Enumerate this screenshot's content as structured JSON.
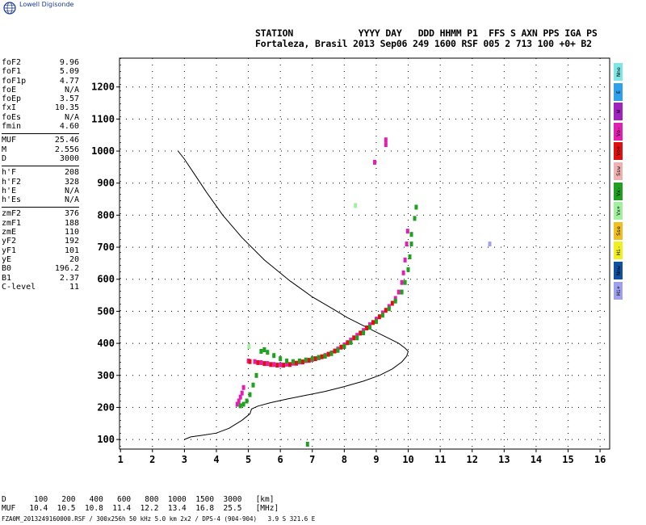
{
  "app": {
    "logo_text": "Lowell Digisonde"
  },
  "header": {
    "line1": "STATION            YYYY DAY   DDD HHMM P1  FFS S AXN PPS IGA PS",
    "line2": "Fortaleza, Brasil 2013 Sep06 249 1600 RSF 005 2 713 100 +0+ B2"
  },
  "params": {
    "group1": [
      {
        "label": "foF2",
        "value": "9.96"
      },
      {
        "label": "foF1",
        "value": "5.09"
      },
      {
        "label": "foF1p",
        "value": "4.77"
      },
      {
        "label": "foE",
        "value": "N/A"
      },
      {
        "label": "foEp",
        "value": "3.57"
      },
      {
        "label": "fxI",
        "value": "10.35"
      },
      {
        "label": "foEs",
        "value": "N/A"
      },
      {
        "label": "fmin",
        "value": "4.60"
      }
    ],
    "group2": [
      {
        "label": "MUF",
        "value": "25.46"
      },
      {
        "label": "M",
        "value": "2.556"
      },
      {
        "label": "D",
        "value": "3000"
      }
    ],
    "group3": [
      {
        "label": "h'F",
        "value": "208"
      },
      {
        "label": "h'F2",
        "value": "328"
      },
      {
        "label": "h'E",
        "value": "N/A"
      },
      {
        "label": "h'Es",
        "value": "N/A"
      }
    ],
    "group4": [
      {
        "label": "zmF2",
        "value": "376"
      },
      {
        "label": "zmF1",
        "value": "188"
      },
      {
        "label": "zmE",
        "value": "110"
      },
      {
        "label": "yF2",
        "value": "192"
      },
      {
        "label": "yF1",
        "value": "101"
      },
      {
        "label": "yE",
        "value": "20"
      },
      {
        "label": "B0",
        "value": "196.2"
      },
      {
        "label": "B1",
        "value": "2.37"
      },
      {
        "label": "C-level",
        "value": "11"
      }
    ]
  },
  "legend": [
    {
      "label": "Nne",
      "color": "#7fe6e6"
    },
    {
      "label": "E",
      "color": "#2ea0ee"
    },
    {
      "label": "W",
      "color": "#a020c0"
    },
    {
      "label": "Vo-",
      "color": "#e020b0"
    },
    {
      "label": "Vo+",
      "color": "#e01010"
    },
    {
      "label": "Ssw",
      "color": "#f0b0b0"
    },
    {
      "label": "Vx-",
      "color": "#20a020"
    },
    {
      "label": "Vx+",
      "color": "#a0f0a0"
    },
    {
      "label": "Sse",
      "color": "#f0c020"
    },
    {
      "label": "Hi-",
      "color": "#f0f020"
    },
    {
      "label": "Nnw",
      "color": "#1050a0"
    },
    {
      "label": "Hi+",
      "color": "#a0a0f0"
    }
  ],
  "muf_table": {
    "d_label": "D",
    "d_values": [
      "100",
      "200",
      "400",
      "600",
      "800",
      "1000",
      "1500",
      "3000"
    ],
    "d_unit": "[km]",
    "muf_label": "MUF",
    "muf_values": [
      "10.4",
      "10.5",
      "10.8",
      "11.4",
      "12.2",
      "13.4",
      "16.8",
      "25.5"
    ],
    "muf_unit": "[MHz]"
  },
  "footer": {
    "text": "FZA0M_2013249160000.RSF / 300x256h 50 kHz 5.0 km 2x2 / DPS-4 (904-904)   3.9 S 321.6 E"
  },
  "chart_data": {
    "type": "scatter",
    "x_ticks": [
      "1",
      "2",
      "3",
      "4",
      "5",
      "6",
      "7",
      "8",
      "9",
      "10",
      "11",
      "12",
      "13",
      "14",
      "15",
      "16"
    ],
    "y_ticks": [
      "100",
      "200",
      "300",
      "400",
      "500",
      "600",
      "700",
      "800",
      "900",
      "1000",
      "1100",
      "1200"
    ],
    "xlim": [
      0.97,
      16.3
    ],
    "ylim": [
      70,
      1290
    ],
    "grid": "dotted",
    "series": [
      {
        "color": "#e020b0",
        "points": [
          [
            4.65,
            210
          ],
          [
            4.7,
            220
          ],
          [
            4.75,
            232
          ],
          [
            4.8,
            245
          ],
          [
            4.85,
            262
          ],
          [
            5.0,
            345
          ],
          [
            5.2,
            343
          ],
          [
            5.4,
            340
          ],
          [
            5.6,
            337
          ],
          [
            5.8,
            334
          ],
          [
            6.0,
            333
          ],
          [
            6.2,
            335
          ],
          [
            6.4,
            338
          ],
          [
            6.6,
            342
          ],
          [
            6.8,
            346
          ],
          [
            7.0,
            350
          ],
          [
            7.2,
            355
          ],
          [
            7.4,
            362
          ],
          [
            7.6,
            370
          ],
          [
            7.8,
            382
          ],
          [
            8.0,
            395
          ],
          [
            8.2,
            410
          ],
          [
            8.4,
            425
          ],
          [
            8.6,
            440
          ],
          [
            8.8,
            458
          ],
          [
            9.0,
            475
          ],
          [
            9.2,
            495
          ],
          [
            9.4,
            515
          ],
          [
            9.6,
            540
          ],
          [
            9.7,
            560
          ],
          [
            9.8,
            590
          ],
          [
            9.85,
            620
          ],
          [
            9.9,
            660
          ],
          [
            9.95,
            710
          ],
          [
            9.98,
            750
          ],
          [
            9.3,
            1035
          ],
          [
            9.3,
            1020
          ],
          [
            8.95,
            965
          ]
        ]
      },
      {
        "color": "#e01010",
        "points": [
          [
            5.05,
            343
          ],
          [
            5.3,
            340
          ],
          [
            5.5,
            337
          ],
          [
            5.7,
            334
          ],
          [
            5.9,
            332
          ],
          [
            6.1,
            332
          ],
          [
            6.3,
            334
          ],
          [
            6.5,
            338
          ],
          [
            6.7,
            342
          ],
          [
            6.9,
            347
          ],
          [
            7.1,
            352
          ],
          [
            7.3,
            358
          ],
          [
            7.5,
            366
          ],
          [
            7.7,
            376
          ],
          [
            7.9,
            388
          ],
          [
            8.1,
            402
          ],
          [
            8.3,
            417
          ],
          [
            8.5,
            432
          ],
          [
            8.7,
            448
          ],
          [
            8.9,
            465
          ],
          [
            9.1,
            483
          ],
          [
            9.3,
            503
          ],
          [
            9.5,
            525
          ]
        ]
      },
      {
        "color": "#20a020",
        "points": [
          [
            4.75,
            205
          ],
          [
            4.85,
            210
          ],
          [
            4.95,
            220
          ],
          [
            5.05,
            240
          ],
          [
            5.15,
            270
          ],
          [
            5.25,
            300
          ],
          [
            5.4,
            375
          ],
          [
            5.5,
            380
          ],
          [
            5.6,
            372
          ],
          [
            5.8,
            362
          ],
          [
            6.0,
            352
          ],
          [
            6.2,
            345
          ],
          [
            6.4,
            343
          ],
          [
            6.6,
            345
          ],
          [
            6.8,
            348
          ],
          [
            7.0,
            352
          ],
          [
            7.2,
            356
          ],
          [
            7.4,
            360
          ],
          [
            7.6,
            368
          ],
          [
            7.8,
            378
          ],
          [
            8.0,
            390
          ],
          [
            8.2,
            403
          ],
          [
            8.4,
            417
          ],
          [
            8.6,
            433
          ],
          [
            8.8,
            450
          ],
          [
            9.0,
            468
          ],
          [
            9.2,
            488
          ],
          [
            9.4,
            508
          ],
          [
            9.6,
            532
          ],
          [
            9.8,
            560
          ],
          [
            9.9,
            590
          ],
          [
            10.0,
            630
          ],
          [
            10.05,
            670
          ],
          [
            10.1,
            710
          ],
          [
            10.1,
            740
          ],
          [
            10.2,
            790
          ],
          [
            10.25,
            825
          ],
          [
            6.85,
            85
          ]
        ]
      },
      {
        "color": "#a0f0a0",
        "points": [
          [
            8.35,
            830
          ],
          [
            5.02,
            390
          ]
        ]
      },
      {
        "color": "#a0a0f0",
        "points": [
          [
            12.55,
            710
          ]
        ]
      }
    ],
    "profile": [
      [
        2.8,
        1000
      ],
      [
        3.0,
        975
      ],
      [
        3.3,
        930
      ],
      [
        3.7,
        870
      ],
      [
        4.2,
        800
      ],
      [
        4.8,
        730
      ],
      [
        5.5,
        660
      ],
      [
        6.3,
        595
      ],
      [
        7.0,
        545
      ],
      [
        7.6,
        510
      ],
      [
        8.1,
        480
      ],
      [
        8.5,
        460
      ],
      [
        8.8,
        445
      ],
      [
        9.1,
        430
      ],
      [
        9.4,
        415
      ],
      [
        9.7,
        400
      ],
      [
        9.9,
        385
      ],
      [
        10.0,
        375
      ],
      [
        9.95,
        360
      ],
      [
        9.8,
        342
      ],
      [
        9.5,
        320
      ],
      [
        9.1,
        300
      ],
      [
        8.6,
        282
      ],
      [
        8.0,
        265
      ],
      [
        7.4,
        250
      ],
      [
        6.8,
        238
      ],
      [
        6.2,
        226
      ],
      [
        5.7,
        215
      ],
      [
        5.3,
        204
      ],
      [
        5.1,
        195
      ],
      [
        5.05,
        180
      ],
      [
        4.8,
        160
      ],
      [
        4.4,
        135
      ],
      [
        4.0,
        120
      ],
      [
        3.5,
        112
      ],
      [
        3.2,
        108
      ],
      [
        3.0,
        100
      ]
    ]
  }
}
